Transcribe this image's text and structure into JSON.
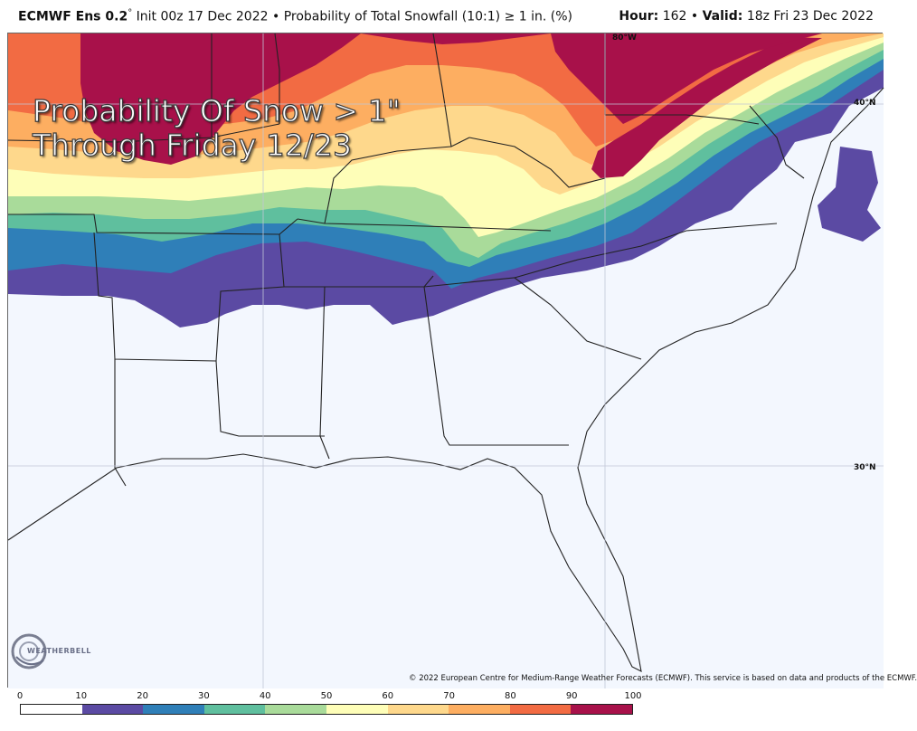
{
  "header": {
    "model": "ECMWF Ens 0.2",
    "degree": "°",
    "init": "Init 00z 17 Dec 2022",
    "bullet": "•",
    "product": "Probability of Total Snowfall (10:1) ≥ 1 in. (%)",
    "hour_label": "Hour",
    "hour_value": "162",
    "valid_label": "Valid",
    "valid_value": "18z Fri 23 Dec 2022"
  },
  "overlay": {
    "line1": "Probability Of Snow > 1\"",
    "line2": "Through Friday 12/23"
  },
  "latitude_labels": [
    "80°W",
    "40°N",
    "30°N"
  ],
  "copyright": "© 2022 European Centre for Medium-Range Weather Forecasts (ECMWF). This service is based on data and products of the ECMWF.",
  "logo": "WEATHERBELL",
  "legend": {
    "ticks": [
      "0",
      "10",
      "20",
      "30",
      "40",
      "50",
      "60",
      "70",
      "80",
      "90",
      "100"
    ],
    "colors": [
      "#ffffff",
      "#5b4aa3",
      "#2f7fb8",
      "#5fbf9e",
      "#a9db9a",
      "#fefeb8",
      "#fed88c",
      "#fdae61",
      "#f26b43",
      "#a8114a"
    ]
  },
  "map_colors": {
    "background": "#f3f7fe",
    "purple": "#5b4aa3",
    "blue": "#2f7fb8",
    "teal": "#5fbf9e",
    "lightgreen": "#a9db9a",
    "yellow": "#fefeb8",
    "lightorange": "#fed88c",
    "orange": "#fdae61",
    "redorange": "#f26b43",
    "maroon": "#a8114a",
    "state_lines": "#222222",
    "county_lines": "#b8bcc8"
  }
}
